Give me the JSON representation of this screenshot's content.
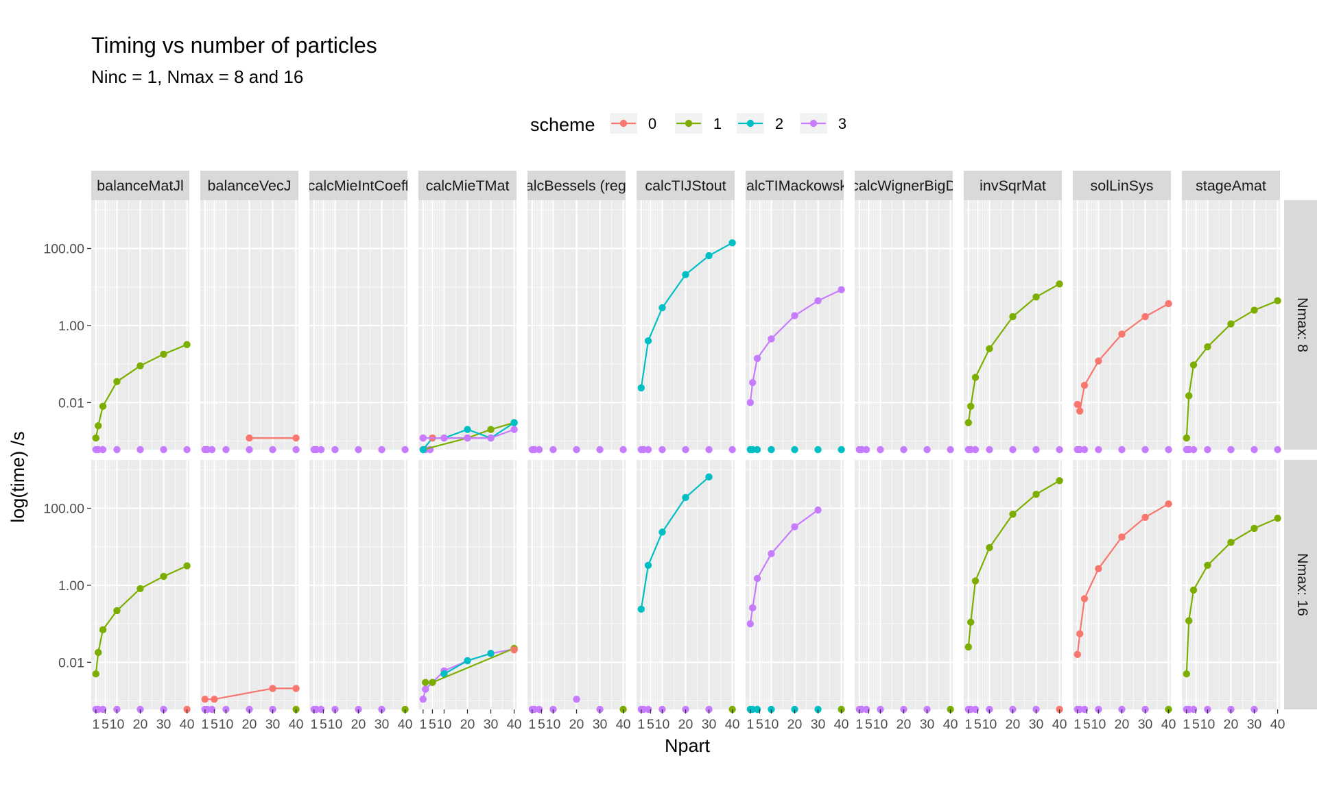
{
  "chart_data": {
    "type": "line",
    "title": "Timing vs number of particles",
    "subtitle": "Ninc = 1, Nmax = 8 and 16",
    "xlabel": "Npart",
    "ylabel": "log(time) /s",
    "y_scale": "log10",
    "y_ticks": [
      0.01,
      1,
      100
    ],
    "y_tick_labels": [
      "0.01",
      "1.00",
      "100.00"
    ],
    "ylim": [
      0.0006,
      1800
    ],
    "x_ticks": [
      1,
      5,
      10,
      20,
      30,
      40
    ],
    "x_tick_labels": [
      "1",
      "5",
      "10",
      "20",
      "30",
      "40"
    ],
    "x_minor_gridlines": [
      2,
      3,
      4,
      6,
      7,
      8,
      9
    ],
    "xlim": [
      -1,
      41
    ],
    "grid": true,
    "legend": {
      "title": "scheme",
      "position": "top",
      "entries": [
        {
          "key": "0",
          "label": "0",
          "color": "#F8766D"
        },
        {
          "key": "1",
          "label": "1",
          "color": "#7CAE00"
        },
        {
          "key": "2",
          "label": "2",
          "color": "#00BFC4"
        },
        {
          "key": "3",
          "label": "3",
          "color": "#C77CFF"
        }
      ]
    },
    "panel_columns": [
      "balanceMatJl",
      "balanceVecJ",
      "calcMieIntCoeff",
      "calcMieTMat",
      "calcBessels (reg.)",
      "calcTIJStout",
      "calcTIMackowski",
      "calcWignerBigD",
      "invSqrMat",
      "solLinSys",
      "stageAmat"
    ],
    "panel_rows": [
      {
        "key": "8",
        "label": "Nmax: 8"
      },
      {
        "key": "16",
        "label": "Nmax: 16"
      }
    ],
    "zero_marker_note": "points drawn on the lower panel border represent zero time",
    "series": [
      {
        "name": "balanceMatJl scheme 1",
        "column": 0,
        "row": "8",
        "scheme": "1",
        "x": [
          1,
          2,
          4,
          10,
          20,
          30,
          40
        ],
        "y": [
          0.0012,
          0.0025,
          0.008,
          0.035,
          0.09,
          0.18,
          0.32
        ]
      },
      {
        "name": "balanceMatJl scheme 1",
        "column": 0,
        "row": "16",
        "scheme": "1",
        "x": [
          1,
          2,
          4,
          10,
          20,
          30,
          40
        ],
        "y": [
          0.005,
          0.018,
          0.07,
          0.22,
          0.82,
          1.7,
          3.2
        ]
      },
      {
        "name": "balanceVecJ scheme 0",
        "column": 1,
        "row": "8",
        "scheme": "0",
        "x": [
          20,
          40
        ],
        "y": [
          0.0012,
          0.0012
        ]
      },
      {
        "name": "balanceVecJ scheme 0",
        "column": 1,
        "row": "16",
        "scheme": "0",
        "x": [
          1,
          5,
          30,
          40
        ],
        "y": [
          0.0011,
          0.0011,
          0.0021,
          0.0021
        ]
      },
      {
        "name": "calcMieTMat scheme 1",
        "column": 3,
        "row": "8",
        "scheme": "1",
        "x": [
          1,
          20,
          30,
          40
        ],
        "y": [
          0.0006,
          0.0012,
          0.002,
          0.003
        ]
      },
      {
        "name": "calcMieTMat scheme 2",
        "column": 3,
        "row": "8",
        "scheme": "2",
        "x": [
          1,
          5,
          10,
          20,
          30,
          40
        ],
        "y": [
          0.0006,
          0.0012,
          0.0012,
          0.002,
          0.0012,
          0.003
        ]
      },
      {
        "name": "calcMieTMat scheme 0",
        "column": 3,
        "row": "8",
        "scheme": "0",
        "x": [
          1,
          5
        ],
        "y": [
          0.0012,
          0.0012
        ]
      },
      {
        "name": "calcMieTMat scheme 3",
        "column": 3,
        "row": "8",
        "scheme": "3",
        "x": [
          1,
          10,
          20,
          30,
          40
        ],
        "y": [
          0.0012,
          0.0012,
          0.0012,
          0.0012,
          0.002
        ]
      },
      {
        "name": "calcMieTMat scheme 3",
        "column": 3,
        "row": "16",
        "scheme": "3",
        "x": [
          1,
          2,
          5,
          10,
          20,
          30,
          40
        ],
        "y": [
          0.0011,
          0.002,
          0.003,
          0.006,
          0.011,
          0.017,
          0.022
        ]
      },
      {
        "name": "calcMieTMat scheme 2",
        "column": 3,
        "row": "16",
        "scheme": "2",
        "x": [
          10,
          20,
          30
        ],
        "y": [
          0.005,
          0.011,
          0.017
        ]
      },
      {
        "name": "calcMieTMat scheme 1",
        "column": 3,
        "row": "16",
        "scheme": "1",
        "x": [
          2,
          5,
          40
        ],
        "y": [
          0.003,
          0.003,
          0.023
        ]
      },
      {
        "name": "calcMieTMat scheme 0",
        "column": 3,
        "row": "16",
        "scheme": "0",
        "x": [
          40
        ],
        "y": [
          0.021
        ]
      },
      {
        "name": "calcBessels scheme 3",
        "column": 4,
        "row": "16",
        "scheme": "3",
        "x": [
          20
        ],
        "y": [
          0.0011
        ]
      },
      {
        "name": "calcTIJStout scheme 2",
        "column": 5,
        "row": "8",
        "scheme": "2",
        "x": [
          1,
          4,
          10,
          20,
          30,
          40
        ],
        "y": [
          0.024,
          0.4,
          2.9,
          21,
          65,
          140
        ]
      },
      {
        "name": "calcTIJStout scheme 2",
        "column": 5,
        "row": "16",
        "scheme": "2",
        "x": [
          1,
          4,
          10,
          20,
          30
        ],
        "y": [
          0.24,
          3.3,
          24,
          190,
          650
        ]
      },
      {
        "name": "calcTIMackowski scheme 3",
        "column": 6,
        "row": "8",
        "scheme": "3",
        "x": [
          1,
          2,
          4,
          10,
          20,
          30,
          40
        ],
        "y": [
          0.01,
          0.033,
          0.14,
          0.45,
          1.8,
          4.4,
          8.5
        ]
      },
      {
        "name": "calcTIMackowski scheme 3",
        "column": 6,
        "row": "16",
        "scheme": "3",
        "x": [
          1,
          2,
          4,
          10,
          20,
          30
        ],
        "y": [
          0.1,
          0.26,
          1.5,
          6.6,
          33,
          90
        ]
      },
      {
        "name": "invSqrMat scheme 1",
        "column": 8,
        "row": "8",
        "scheme": "1",
        "x": [
          1,
          2,
          4,
          10,
          20,
          30,
          40
        ],
        "y": [
          0.003,
          0.008,
          0.045,
          0.25,
          1.7,
          5.5,
          12
        ]
      },
      {
        "name": "invSqrMat scheme 1",
        "column": 8,
        "row": "16",
        "scheme": "1",
        "x": [
          1,
          2,
          4,
          10,
          20,
          30,
          40
        ],
        "y": [
          0.025,
          0.11,
          1.3,
          9.5,
          70,
          230,
          520
        ]
      },
      {
        "name": "solLinSys scheme 0",
        "column": 9,
        "row": "8",
        "scheme": "0",
        "x": [
          1,
          2,
          4,
          10,
          20,
          30,
          40
        ],
        "y": [
          0.009,
          0.006,
          0.028,
          0.12,
          0.6,
          1.7,
          3.7
        ]
      },
      {
        "name": "solLinSys scheme 0",
        "column": 9,
        "row": "16",
        "scheme": "0",
        "x": [
          1,
          2,
          4,
          10,
          20,
          30,
          40
        ],
        "y": [
          0.016,
          0.055,
          0.45,
          2.7,
          18,
          58,
          130
        ]
      },
      {
        "name": "stageAmat scheme 1",
        "column": 10,
        "row": "8",
        "scheme": "1",
        "x": [
          1,
          2,
          4,
          10,
          20,
          30,
          40
        ],
        "y": [
          0.0012,
          0.015,
          0.095,
          0.28,
          1.1,
          2.5,
          4.4
        ]
      },
      {
        "name": "stageAmat scheme 1",
        "column": 10,
        "row": "16",
        "scheme": "1",
        "x": [
          1,
          2,
          4,
          10,
          20,
          30,
          40
        ],
        "y": [
          0.005,
          0.12,
          0.75,
          3.3,
          13,
          30,
          55
        ]
      }
    ],
    "zero_points": [
      {
        "column": 0,
        "row": "8",
        "scheme": "3",
        "x": [
          1,
          2,
          4,
          10,
          20,
          30,
          40
        ]
      },
      {
        "column": 0,
        "row": "16",
        "scheme": "3",
        "x": [
          1,
          2,
          4,
          10,
          20,
          30
        ]
      },
      {
        "column": 0,
        "row": "16",
        "scheme": "0",
        "x": [
          40
        ]
      },
      {
        "column": 1,
        "row": "8",
        "scheme": "3",
        "x": [
          1,
          2,
          4,
          10,
          20,
          30,
          40
        ]
      },
      {
        "column": 1,
        "row": "16",
        "scheme": "3",
        "x": [
          1,
          2,
          4,
          10,
          20,
          30
        ]
      },
      {
        "column": 1,
        "row": "16",
        "scheme": "1",
        "x": [
          40
        ]
      },
      {
        "column": 2,
        "row": "8",
        "scheme": "3",
        "x": [
          1,
          2,
          4,
          10,
          20,
          30,
          40
        ]
      },
      {
        "column": 2,
        "row": "16",
        "scheme": "3",
        "x": [
          1,
          2,
          4,
          10,
          20,
          30
        ]
      },
      {
        "column": 2,
        "row": "16",
        "scheme": "1",
        "x": [
          40
        ]
      },
      {
        "column": 3,
        "row": "8",
        "scheme": "3",
        "x": [
          2,
          4
        ]
      },
      {
        "column": 4,
        "row": "8",
        "scheme": "3",
        "x": [
          1,
          2,
          4,
          10,
          20,
          30,
          40
        ]
      },
      {
        "column": 4,
        "row": "16",
        "scheme": "3",
        "x": [
          1,
          2,
          4,
          10,
          30
        ]
      },
      {
        "column": 4,
        "row": "16",
        "scheme": "1",
        "x": [
          40
        ]
      },
      {
        "column": 5,
        "row": "8",
        "scheme": "3",
        "x": [
          1,
          2,
          4,
          10,
          20,
          30,
          40
        ]
      },
      {
        "column": 5,
        "row": "16",
        "scheme": "3",
        "x": [
          1,
          2,
          4,
          10,
          20,
          30
        ]
      },
      {
        "column": 5,
        "row": "16",
        "scheme": "1",
        "x": [
          40
        ]
      },
      {
        "column": 6,
        "row": "8",
        "scheme": "2",
        "x": [
          1,
          2,
          4,
          10,
          20,
          30,
          40
        ]
      },
      {
        "column": 6,
        "row": "16",
        "scheme": "2",
        "x": [
          1,
          2,
          4,
          10,
          20,
          30
        ]
      },
      {
        "column": 6,
        "row": "16",
        "scheme": "1",
        "x": [
          40
        ]
      },
      {
        "column": 7,
        "row": "8",
        "scheme": "3",
        "x": [
          1,
          2,
          4,
          10,
          20,
          30,
          40
        ]
      },
      {
        "column": 7,
        "row": "16",
        "scheme": "3",
        "x": [
          1,
          2,
          4,
          10,
          20,
          30
        ]
      },
      {
        "column": 7,
        "row": "16",
        "scheme": "1",
        "x": [
          40
        ]
      },
      {
        "column": 8,
        "row": "8",
        "scheme": "3",
        "x": [
          1,
          2,
          4,
          10,
          20,
          30,
          40
        ]
      },
      {
        "column": 8,
        "row": "16",
        "scheme": "3",
        "x": [
          1,
          2,
          4,
          10,
          20,
          30
        ]
      },
      {
        "column": 8,
        "row": "16",
        "scheme": "0",
        "x": [
          40
        ]
      },
      {
        "column": 9,
        "row": "8",
        "scheme": "3",
        "x": [
          1,
          2,
          4,
          10,
          20,
          30,
          40
        ]
      },
      {
        "column": 9,
        "row": "16",
        "scheme": "3",
        "x": [
          1,
          2,
          4,
          10,
          20,
          30
        ]
      },
      {
        "column": 9,
        "row": "16",
        "scheme": "1",
        "x": [
          40
        ]
      },
      {
        "column": 10,
        "row": "8",
        "scheme": "3",
        "x": [
          1,
          2,
          4,
          10,
          20,
          30,
          40
        ]
      },
      {
        "column": 10,
        "row": "16",
        "scheme": "3",
        "x": [
          1,
          2,
          4,
          10,
          20,
          30
        ]
      }
    ]
  }
}
